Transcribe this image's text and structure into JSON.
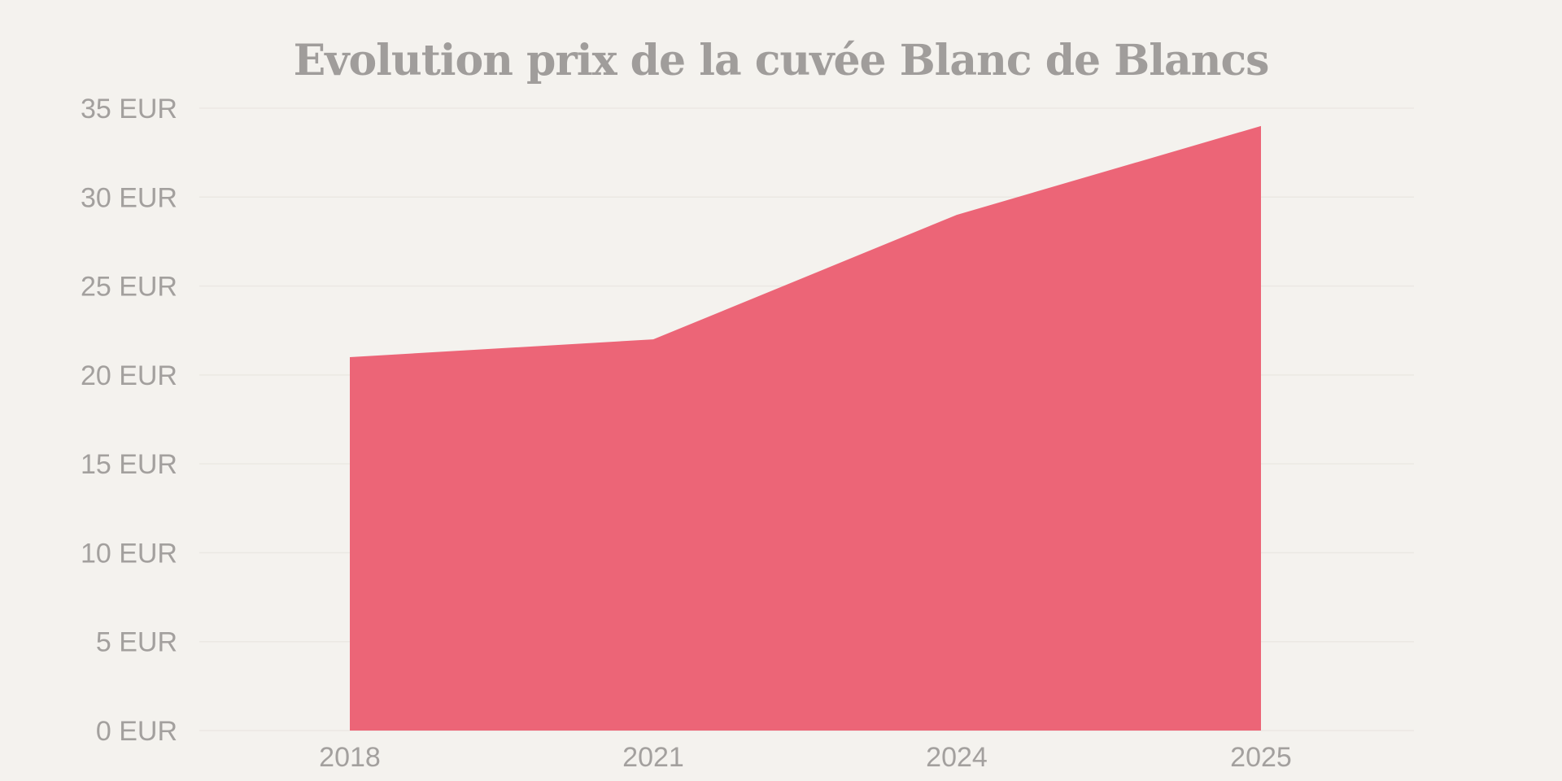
{
  "chart_data": {
    "type": "area",
    "title": "Evolution prix de la cuvée Blanc de Blancs",
    "xlabel": "",
    "ylabel": "",
    "categories": [
      "2018",
      "2021",
      "2024",
      "2025"
    ],
    "series": [
      {
        "values": [
          21,
          22,
          29,
          34
        ],
        "color": "#ec6577"
      }
    ],
    "ylim": [
      0,
      35
    ],
    "yticks": [
      0,
      5,
      10,
      15,
      20,
      25,
      30,
      35
    ],
    "ytick_labels": [
      "0 EUR",
      "5 EUR",
      "10 EUR",
      "15 EUR",
      "20 EUR",
      "25 EUR",
      "30 EUR",
      "35 EUR"
    ],
    "grid": true,
    "legend": "none",
    "background": "#f4f2ee",
    "text_color": "#a09d9b"
  }
}
